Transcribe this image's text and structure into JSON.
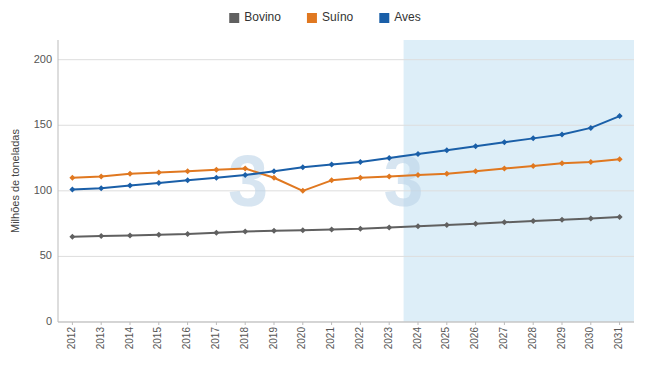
{
  "chart_data": {
    "type": "line",
    "y_label": "Milhões de toneladas",
    "x": [
      2012,
      2013,
      2014,
      2015,
      2016,
      2017,
      2018,
      2019,
      2020,
      2021,
      2022,
      2023,
      2024,
      2025,
      2026,
      2027,
      2028,
      2029,
      2030,
      2031
    ],
    "xlim": [
      2011.5,
      2031.5
    ],
    "xticks": [
      2012,
      2013,
      2014,
      2015,
      2016,
      2017,
      2018,
      2019,
      2020,
      2021,
      2022,
      2023,
      2024,
      2025,
      2026,
      2027,
      2028,
      2029,
      2030,
      2031
    ],
    "ylim": [
      0,
      215
    ],
    "yticks": [
      0,
      50,
      100,
      150,
      200
    ],
    "grid": true,
    "legend": "top",
    "marker": "diamond",
    "forecast_start": 2024,
    "forecast_color": "#ddeef8",
    "annotations": [
      "3",
      "3"
    ],
    "series": [
      {
        "name": "Bovino",
        "color": "#606060",
        "values": [
          65,
          65.5,
          66,
          66.5,
          67,
          68,
          69,
          69.5,
          70,
          70.5,
          71,
          72,
          73,
          74,
          75,
          76,
          77,
          78,
          79,
          80
        ]
      },
      {
        "name": "Suíno",
        "color": "#e07820",
        "values": [
          110,
          111,
          113,
          114,
          115,
          116,
          117,
          110,
          100,
          108,
          110,
          111,
          112,
          113,
          115,
          117,
          119,
          121,
          122,
          124
        ]
      },
      {
        "name": "Aves",
        "color": "#1a5fa8",
        "values": [
          101,
          102,
          104,
          106,
          108,
          110,
          112,
          115,
          118,
          120,
          122,
          125,
          128,
          131,
          134,
          137,
          140,
          143,
          148,
          157
        ]
      }
    ]
  }
}
